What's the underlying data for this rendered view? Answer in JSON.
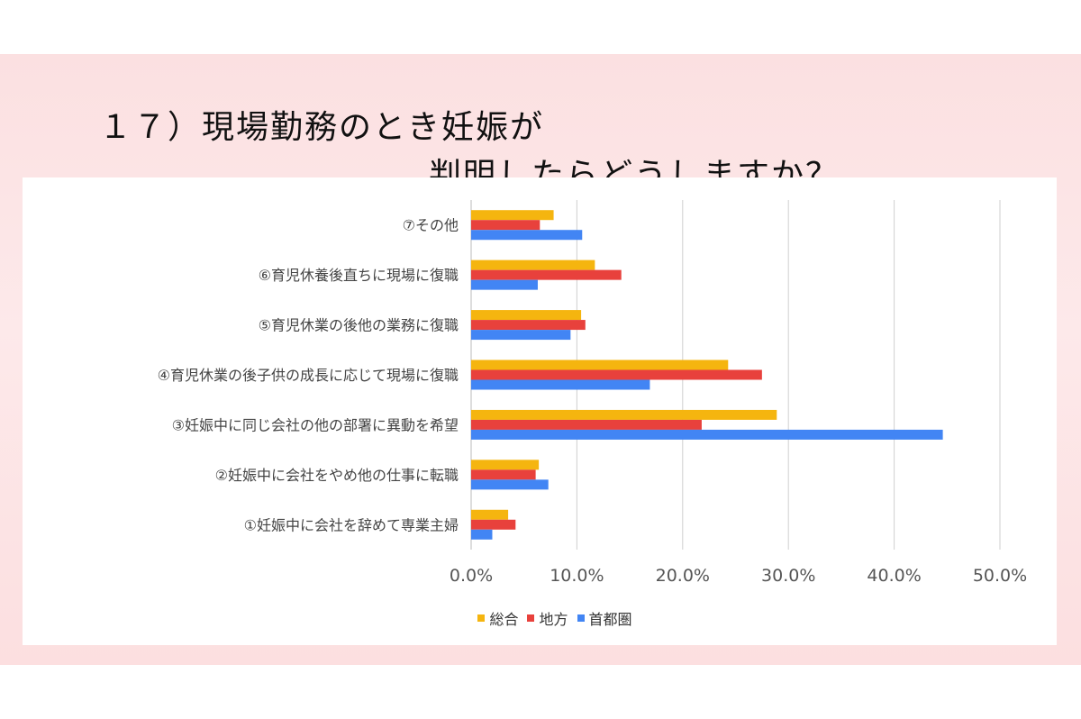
{
  "title": {
    "line1": "１７）現場勤務のとき妊娠が",
    "line2": "判明したらどうしますか？"
  },
  "colors": {
    "background": "#fde7e8",
    "series": [
      "#f5b50f",
      "#e8413c",
      "#4285f4"
    ]
  },
  "chart_data": {
    "type": "bar",
    "orientation": "horizontal",
    "categories": [
      "①妊娠中に会社を辞めて専業主婦",
      "②妊娠中に会社をやめ他の仕事に転職",
      "③妊娠中に同じ会社の他の部署に異動を希望",
      "④育児休業の後子供の成長に応じて現場に復職",
      "⑤育児休業の後他の業務に復職",
      "⑥育児休養後直ちに現場に復職",
      "⑦その他"
    ],
    "series": [
      {
        "name": "総合",
        "values": [
          3.5,
          6.4,
          28.9,
          24.3,
          10.4,
          11.7,
          7.8
        ]
      },
      {
        "name": "地方",
        "values": [
          4.2,
          6.1,
          21.8,
          27.5,
          10.8,
          14.2,
          6.5
        ]
      },
      {
        "name": "首都圏",
        "values": [
          2.0,
          7.3,
          44.6,
          16.9,
          9.4,
          6.3,
          10.5
        ]
      }
    ],
    "xlim": [
      0,
      50
    ],
    "xticks": [
      "0.0%",
      "10.0%",
      "20.0%",
      "30.0%",
      "40.0%",
      "50.0%"
    ],
    "grid": true,
    "legend_position": "bottom"
  }
}
